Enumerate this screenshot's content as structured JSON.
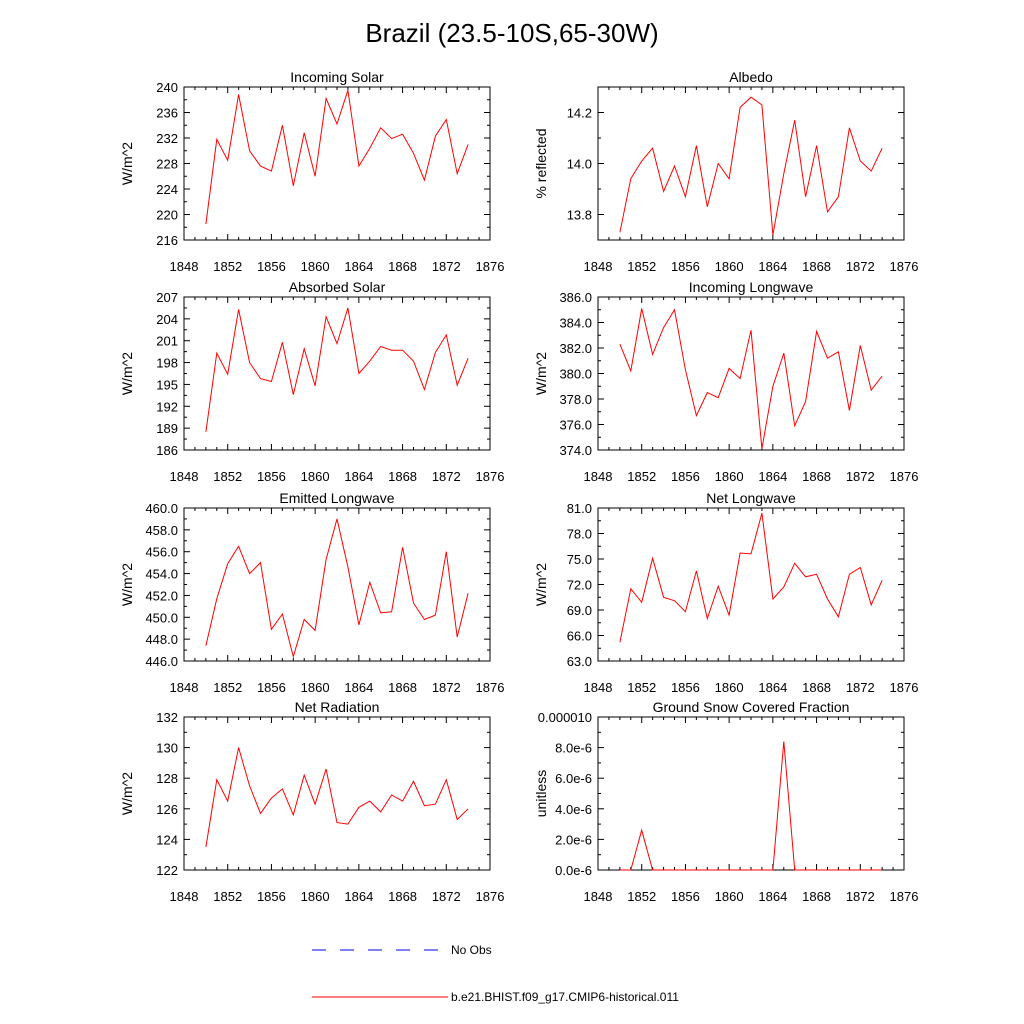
{
  "title": "Brazil (23.5-10S,65-30W)",
  "colors": {
    "model": "#ff0000",
    "obs": "#0000ff",
    "axis": "#000000"
  },
  "legend": {
    "obs_label": "No Obs",
    "model_label": "b.e21.BHIST.f09_g17.CMIP6-historical.011"
  },
  "chart_data": [
    {
      "type": "line",
      "title": "Incoming Solar",
      "xlabel": "",
      "ylabel": "W/m^2",
      "xlim": [
        1848,
        1876
      ],
      "ylim": [
        216,
        240
      ],
      "xticks": [
        "1848",
        "1852",
        "1856",
        "1860",
        "1864",
        "1868",
        "1872",
        "1876"
      ],
      "yticks": [
        "216",
        "220",
        "224",
        "228",
        "232",
        "236",
        "240"
      ],
      "x": [
        1850,
        1851,
        1852,
        1853,
        1854,
        1855,
        1856,
        1857,
        1858,
        1859,
        1860,
        1861,
        1862,
        1863,
        1864,
        1865,
        1866,
        1867,
        1868,
        1869,
        1870,
        1871,
        1872,
        1873,
        1874
      ],
      "series": [
        {
          "name": "b.e21.BHIST.f09_g17.CMIP6-historical.011",
          "values": [
            218.5,
            231.8,
            228.5,
            238.8,
            230.0,
            227.6,
            226.8,
            234.0,
            224.5,
            232.8,
            226.0,
            238.2,
            234.2,
            239.5,
            227.6,
            230.4,
            233.6,
            231.9,
            232.6,
            229.6,
            225.4,
            232.3,
            234.9,
            226.4,
            231.0
          ]
        }
      ]
    },
    {
      "type": "line",
      "title": "Albedo",
      "xlabel": "",
      "ylabel": "% reflected",
      "xlim": [
        1848,
        1876
      ],
      "ylim": [
        13.7,
        14.3
      ],
      "xticks": [
        "1848",
        "1852",
        "1856",
        "1860",
        "1864",
        "1868",
        "1872",
        "1876"
      ],
      "ytick_values": [
        13.8,
        14.0,
        14.2
      ],
      "yticks": [
        "13.8",
        "14.0",
        "14.2"
      ],
      "x": [
        1850,
        1851,
        1852,
        1853,
        1854,
        1855,
        1856,
        1857,
        1858,
        1859,
        1860,
        1861,
        1862,
        1863,
        1864,
        1865,
        1866,
        1867,
        1868,
        1869,
        1870,
        1871,
        1872,
        1873,
        1874
      ],
      "series": [
        {
          "name": "b.e21.BHIST.f09_g17.CMIP6-historical.011",
          "values": [
            13.73,
            13.94,
            14.01,
            14.06,
            13.89,
            13.99,
            13.87,
            14.07,
            13.83,
            14.0,
            13.94,
            14.22,
            14.26,
            14.23,
            13.72,
            13.96,
            14.17,
            13.87,
            14.07,
            13.81,
            13.87,
            14.14,
            14.01,
            13.97,
            14.06
          ]
        }
      ]
    },
    {
      "type": "line",
      "title": "Absorbed Solar",
      "xlabel": "",
      "ylabel": "W/m^2",
      "xlim": [
        1848,
        1876
      ],
      "ylim": [
        186,
        207
      ],
      "xticks": [
        "1848",
        "1852",
        "1856",
        "1860",
        "1864",
        "1868",
        "1872",
        "1876"
      ],
      "yticks": [
        "186",
        "189",
        "192",
        "195",
        "198",
        "201",
        "204",
        "207"
      ],
      "x": [
        1850,
        1851,
        1852,
        1853,
        1854,
        1855,
        1856,
        1857,
        1858,
        1859,
        1860,
        1861,
        1862,
        1863,
        1864,
        1865,
        1866,
        1867,
        1868,
        1869,
        1870,
        1871,
        1872,
        1873,
        1874
      ],
      "series": [
        {
          "name": "b.e21.BHIST.f09_g17.CMIP6-historical.011",
          "values": [
            188.5,
            199.3,
            196.4,
            205.3,
            198.0,
            195.8,
            195.4,
            200.8,
            193.6,
            199.9,
            194.8,
            204.3,
            200.6,
            205.5,
            196.5,
            198.2,
            200.2,
            199.7,
            199.7,
            198.2,
            194.3,
            199.4,
            201.8,
            194.9,
            198.6
          ]
        }
      ]
    },
    {
      "type": "line",
      "title": "Incoming Longwave",
      "xlabel": "",
      "ylabel": "W/m^2",
      "xlim": [
        1848,
        1876
      ],
      "ylim": [
        374,
        386
      ],
      "xticks": [
        "1848",
        "1852",
        "1856",
        "1860",
        "1864",
        "1868",
        "1872",
        "1876"
      ],
      "yticks": [
        "374.0",
        "376.0",
        "378.0",
        "380.0",
        "382.0",
        "384.0",
        "386.0"
      ],
      "x": [
        1850,
        1851,
        1852,
        1853,
        1854,
        1855,
        1856,
        1857,
        1858,
        1859,
        1860,
        1861,
        1862,
        1863,
        1864,
        1865,
        1866,
        1867,
        1868,
        1869,
        1870,
        1871,
        1872,
        1873,
        1874
      ],
      "series": [
        {
          "name": "b.e21.BHIST.f09_g17.CMIP6-historical.011",
          "values": [
            382.3,
            380.2,
            385.1,
            381.5,
            383.6,
            385.0,
            380.3,
            376.7,
            378.5,
            378.1,
            380.4,
            379.6,
            383.4,
            374.1,
            379.0,
            381.6,
            375.9,
            377.8,
            383.3,
            381.2,
            381.7,
            377.1,
            382.2,
            378.7,
            379.8
          ]
        }
      ]
    },
    {
      "type": "line",
      "title": "Emitted Longwave",
      "xlabel": "",
      "ylabel": "W/m^2",
      "xlim": [
        1848,
        1876
      ],
      "ylim": [
        446,
        460
      ],
      "xticks": [
        "1848",
        "1852",
        "1856",
        "1860",
        "1864",
        "1868",
        "1872",
        "1876"
      ],
      "yticks": [
        "446.0",
        "448.0",
        "450.0",
        "452.0",
        "454.0",
        "456.0",
        "458.0",
        "460.0"
      ],
      "x": [
        1850,
        1851,
        1852,
        1853,
        1854,
        1855,
        1856,
        1857,
        1858,
        1859,
        1860,
        1861,
        1862,
        1863,
        1864,
        1865,
        1866,
        1867,
        1868,
        1869,
        1870,
        1871,
        1872,
        1873,
        1874
      ],
      "series": [
        {
          "name": "b.e21.BHIST.f09_g17.CMIP6-historical.011",
          "values": [
            447.4,
            451.7,
            454.9,
            456.5,
            454.0,
            455.0,
            448.9,
            450.3,
            446.4,
            449.8,
            448.8,
            455.3,
            459.0,
            454.6,
            449.3,
            453.2,
            450.4,
            450.5,
            456.4,
            451.3,
            449.8,
            450.2,
            456.0,
            448.2,
            452.2
          ]
        }
      ]
    },
    {
      "type": "line",
      "title": "Net Longwave",
      "xlabel": "",
      "ylabel": "W/m^2",
      "xlim": [
        1848,
        1876
      ],
      "ylim": [
        63,
        81
      ],
      "xticks": [
        "1848",
        "1852",
        "1856",
        "1860",
        "1864",
        "1868",
        "1872",
        "1876"
      ],
      "yticks": [
        "63.0",
        "66.0",
        "69.0",
        "72.0",
        "75.0",
        "78.0",
        "81.0"
      ],
      "x": [
        1850,
        1851,
        1852,
        1853,
        1854,
        1855,
        1856,
        1857,
        1858,
        1859,
        1860,
        1861,
        1862,
        1863,
        1864,
        1865,
        1866,
        1867,
        1868,
        1869,
        1870,
        1871,
        1872,
        1873,
        1874
      ],
      "series": [
        {
          "name": "b.e21.BHIST.f09_g17.CMIP6-historical.011",
          "values": [
            65.2,
            71.5,
            69.9,
            75.1,
            70.5,
            70.1,
            68.8,
            73.6,
            68.0,
            71.8,
            68.4,
            75.7,
            75.6,
            80.4,
            70.3,
            71.7,
            74.5,
            72.9,
            73.2,
            70.3,
            68.2,
            73.2,
            74.0,
            69.6,
            72.5
          ]
        }
      ]
    },
    {
      "type": "line",
      "title": "Net Radiation",
      "xlabel": "",
      "ylabel": "W/m^2",
      "xlim": [
        1848,
        1876
      ],
      "ylim": [
        122,
        132
      ],
      "xticks": [
        "1848",
        "1852",
        "1856",
        "1860",
        "1864",
        "1868",
        "1872",
        "1876"
      ],
      "yticks": [
        "122",
        "124",
        "126",
        "128",
        "130",
        "132"
      ],
      "x": [
        1850,
        1851,
        1852,
        1853,
        1854,
        1855,
        1856,
        1857,
        1858,
        1859,
        1860,
        1861,
        1862,
        1863,
        1864,
        1865,
        1866,
        1867,
        1868,
        1869,
        1870,
        1871,
        1872,
        1873,
        1874
      ],
      "series": [
        {
          "name": "b.e21.BHIST.f09_g17.CMIP6-historical.011",
          "values": [
            123.5,
            127.9,
            126.5,
            130.0,
            127.5,
            125.7,
            126.7,
            127.3,
            125.6,
            128.2,
            126.3,
            128.6,
            125.1,
            125.0,
            126.1,
            126.5,
            125.8,
            126.9,
            126.5,
            127.8,
            126.2,
            126.3,
            127.9,
            125.3,
            126.0
          ]
        }
      ]
    },
    {
      "type": "line",
      "title": "Ground Snow Covered Fraction",
      "xlabel": "",
      "ylabel": "unitless",
      "xlim": [
        1848,
        1876
      ],
      "ylim": [
        0,
        1e-05
      ],
      "xticks": [
        "1848",
        "1852",
        "1856",
        "1860",
        "1864",
        "1868",
        "1872",
        "1876"
      ],
      "ytick_values": [
        0,
        2e-06,
        4e-06,
        6e-06,
        8e-06,
        1e-05
      ],
      "yticks": [
        "0.0e-6",
        "2.0e-6",
        "4.0e-6",
        "6.0e-6",
        "8.0e-6",
        "0.000010"
      ],
      "x": [
        1850,
        1851,
        1852,
        1853,
        1854,
        1855,
        1856,
        1857,
        1858,
        1859,
        1860,
        1861,
        1862,
        1863,
        1864,
        1865,
        1866,
        1867,
        1868,
        1869,
        1870,
        1871,
        1872,
        1873,
        1874
      ],
      "series": [
        {
          "name": "b.e21.BHIST.f09_g17.CMIP6-historical.011",
          "values": [
            0,
            0,
            2.6e-06,
            0,
            0,
            0,
            0,
            0,
            0,
            0,
            0,
            0,
            0,
            0,
            0,
            8.4e-06,
            0,
            0,
            0,
            0,
            0,
            0,
            0,
            0,
            0
          ]
        }
      ]
    }
  ]
}
